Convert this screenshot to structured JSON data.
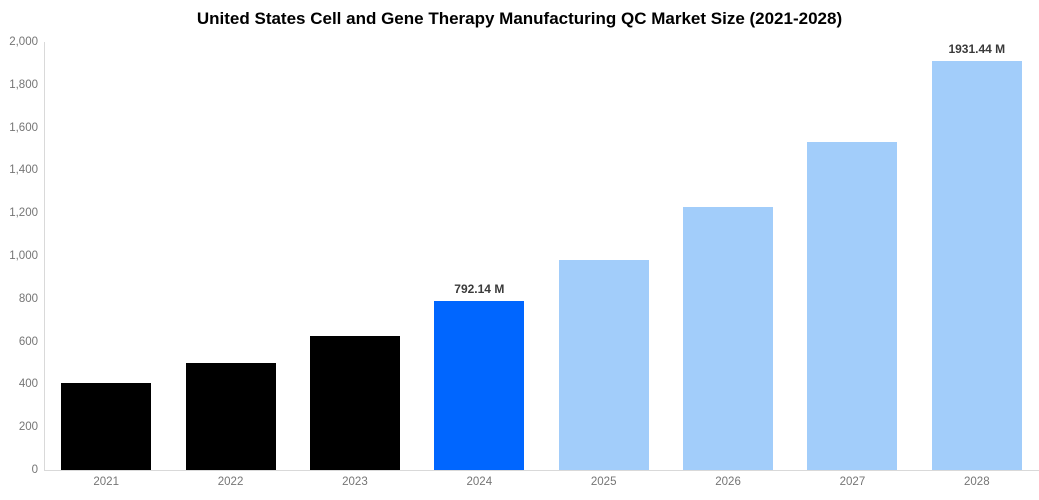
{
  "title": "United States Cell and Gene Therapy Manufacturing QC Market Size (2021-2028)",
  "chart_data": {
    "type": "bar",
    "categories": [
      "2021",
      "2022",
      "2023",
      "2024",
      "2025",
      "2026",
      "2027",
      "2028"
    ],
    "values": [
      405,
      500,
      625,
      792.14,
      980,
      1230,
      1535,
      1931.44
    ],
    "bar_labels": [
      null,
      null,
      null,
      "792.14 M",
      null,
      null,
      null,
      "1931.44 M"
    ],
    "bar_color_roles": [
      "past",
      "past",
      "past",
      "highlight",
      "forecast",
      "forecast",
      "forecast",
      "forecast"
    ],
    "units": "M",
    "xlabel": "",
    "ylabel": "",
    "y_max": 2000,
    "y_ticks": [
      {
        "value": 0,
        "label": "0"
      },
      {
        "value": 200,
        "label": "200"
      },
      {
        "value": 400,
        "label": "400"
      },
      {
        "value": 600,
        "label": "600"
      },
      {
        "value": 800,
        "label": "800"
      },
      {
        "value": 1000,
        "label": "1,000"
      },
      {
        "value": 1200,
        "label": "1,200"
      },
      {
        "value": 1400,
        "label": "1,400"
      },
      {
        "value": 1600,
        "label": "1,600"
      },
      {
        "value": 1800,
        "label": "1,800"
      },
      {
        "value": 2000,
        "label": "2,000"
      }
    ],
    "grid": false,
    "legend": false,
    "colors": {
      "past": "#000000",
      "highlight": "#0066FF",
      "forecast": "#A2CDFA",
      "axis": "#D9D9D9",
      "tick_text": "#757575",
      "label_text": "#3A3A3A",
      "title_text": "#000000"
    }
  }
}
